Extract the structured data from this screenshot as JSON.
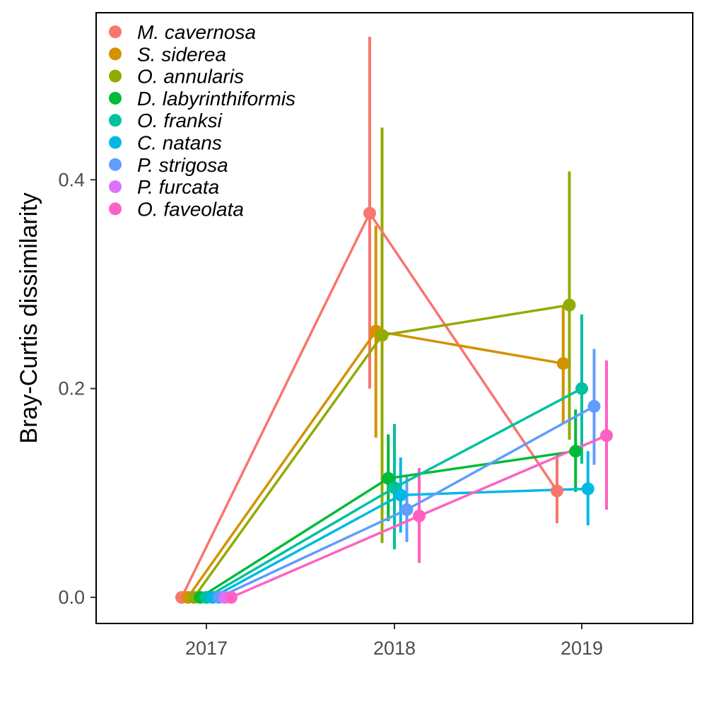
{
  "chart_data": {
    "type": "line",
    "title": "",
    "xlabel": "",
    "ylabel": "Bray-Curtis dissimilarity",
    "x_categories": [
      "2017",
      "2018",
      "2019"
    ],
    "y_ticks": [
      "0.0",
      "0.2",
      "0.4"
    ],
    "ylim": [
      -0.025,
      0.56
    ],
    "grid": false,
    "legend_position": "top-left",
    "series": [
      {
        "name": "M. cavernosa",
        "color": "#F8766D",
        "values": [
          0.0,
          0.368,
          0.102
        ],
        "lower": [
          0.0,
          0.2,
          0.071
        ],
        "upper": [
          0.0,
          0.537,
          0.137
        ]
      },
      {
        "name": "S. siderea",
        "color": "#D39200",
        "values": [
          0.0,
          0.255,
          0.224
        ],
        "lower": [
          0.0,
          0.153,
          0.167
        ],
        "upper": [
          0.0,
          0.356,
          0.28
        ]
      },
      {
        "name": "O. annularis",
        "color": "#93AA00",
        "values": [
          0.0,
          0.251,
          0.28
        ],
        "lower": [
          0.0,
          0.052,
          0.151
        ],
        "upper": [
          0.0,
          0.45,
          0.408
        ]
      },
      {
        "name": "D. labyrinthiformis",
        "color": "#00BA38",
        "values": [
          0.0,
          0.114,
          0.14
        ],
        "lower": [
          0.0,
          0.073,
          0.101
        ],
        "upper": [
          0.0,
          0.156,
          0.18
        ]
      },
      {
        "name": "O. franksi",
        "color": "#00C19F",
        "values": [
          0.0,
          0.105,
          0.2
        ],
        "lower": [
          0.0,
          0.046,
          0.128
        ],
        "upper": [
          0.0,
          0.166,
          0.271
        ]
      },
      {
        "name": "C. natans",
        "color": "#00B9E3",
        "values": [
          0.0,
          0.098,
          0.104
        ],
        "lower": [
          0.0,
          0.062,
          0.069
        ],
        "upper": [
          0.0,
          0.134,
          0.14
        ]
      },
      {
        "name": "P. strigosa",
        "color": "#619CFF",
        "values": [
          0.0,
          0.084,
          0.183
        ],
        "lower": [
          0.0,
          0.053,
          0.127
        ],
        "upper": [
          0.0,
          0.116,
          0.238
        ]
      },
      {
        "name": "P. furcata",
        "color": "#DB72FB",
        "values": [
          0.0,
          null,
          null
        ],
        "lower": [
          0.0,
          null,
          null
        ],
        "upper": [
          0.0,
          null,
          null
        ]
      },
      {
        "name": "O. faveolata",
        "color": "#FF61C3",
        "values": [
          0.0,
          0.078,
          0.155
        ],
        "lower": [
          0.0,
          0.033,
          0.084
        ],
        "upper": [
          0.0,
          0.124,
          0.227
        ]
      }
    ]
  }
}
